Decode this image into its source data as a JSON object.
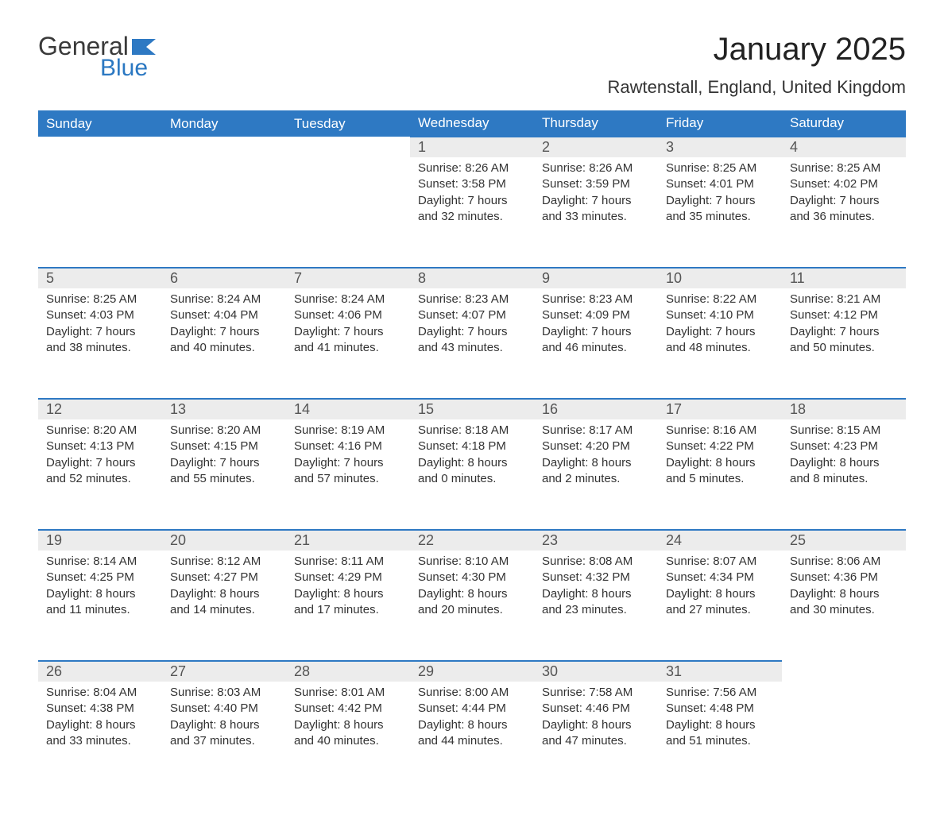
{
  "logo": {
    "text1": "General",
    "text2": "Blue",
    "flag_color": "#2e79c3"
  },
  "title": "January 2025",
  "subtitle": "Rawtenstall, England, United Kingdom",
  "colors": {
    "header_bg": "#2e79c3",
    "header_text": "#ffffff",
    "daynum_bg": "#ececec",
    "row_border": "#2e79c3",
    "body_text": "#333333"
  },
  "fonts": {
    "title_size": 40,
    "subtitle_size": 22,
    "header_size": 17,
    "cell_size": 15
  },
  "day_headers": [
    "Sunday",
    "Monday",
    "Tuesday",
    "Wednesday",
    "Thursday",
    "Friday",
    "Saturday"
  ],
  "weeks": [
    [
      null,
      null,
      null,
      {
        "n": "1",
        "sunrise": "8:26 AM",
        "sunset": "3:58 PM",
        "daylight": "7 hours and 32 minutes."
      },
      {
        "n": "2",
        "sunrise": "8:26 AM",
        "sunset": "3:59 PM",
        "daylight": "7 hours and 33 minutes."
      },
      {
        "n": "3",
        "sunrise": "8:25 AM",
        "sunset": "4:01 PM",
        "daylight": "7 hours and 35 minutes."
      },
      {
        "n": "4",
        "sunrise": "8:25 AM",
        "sunset": "4:02 PM",
        "daylight": "7 hours and 36 minutes."
      }
    ],
    [
      {
        "n": "5",
        "sunrise": "8:25 AM",
        "sunset": "4:03 PM",
        "daylight": "7 hours and 38 minutes."
      },
      {
        "n": "6",
        "sunrise": "8:24 AM",
        "sunset": "4:04 PM",
        "daylight": "7 hours and 40 minutes."
      },
      {
        "n": "7",
        "sunrise": "8:24 AM",
        "sunset": "4:06 PM",
        "daylight": "7 hours and 41 minutes."
      },
      {
        "n": "8",
        "sunrise": "8:23 AM",
        "sunset": "4:07 PM",
        "daylight": "7 hours and 43 minutes."
      },
      {
        "n": "9",
        "sunrise": "8:23 AM",
        "sunset": "4:09 PM",
        "daylight": "7 hours and 46 minutes."
      },
      {
        "n": "10",
        "sunrise": "8:22 AM",
        "sunset": "4:10 PM",
        "daylight": "7 hours and 48 minutes."
      },
      {
        "n": "11",
        "sunrise": "8:21 AM",
        "sunset": "4:12 PM",
        "daylight": "7 hours and 50 minutes."
      }
    ],
    [
      {
        "n": "12",
        "sunrise": "8:20 AM",
        "sunset": "4:13 PM",
        "daylight": "7 hours and 52 minutes."
      },
      {
        "n": "13",
        "sunrise": "8:20 AM",
        "sunset": "4:15 PM",
        "daylight": "7 hours and 55 minutes."
      },
      {
        "n": "14",
        "sunrise": "8:19 AM",
        "sunset": "4:16 PM",
        "daylight": "7 hours and 57 minutes."
      },
      {
        "n": "15",
        "sunrise": "8:18 AM",
        "sunset": "4:18 PM",
        "daylight": "8 hours and 0 minutes."
      },
      {
        "n": "16",
        "sunrise": "8:17 AM",
        "sunset": "4:20 PM",
        "daylight": "8 hours and 2 minutes."
      },
      {
        "n": "17",
        "sunrise": "8:16 AM",
        "sunset": "4:22 PM",
        "daylight": "8 hours and 5 minutes."
      },
      {
        "n": "18",
        "sunrise": "8:15 AM",
        "sunset": "4:23 PM",
        "daylight": "8 hours and 8 minutes."
      }
    ],
    [
      {
        "n": "19",
        "sunrise": "8:14 AM",
        "sunset": "4:25 PM",
        "daylight": "8 hours and 11 minutes."
      },
      {
        "n": "20",
        "sunrise": "8:12 AM",
        "sunset": "4:27 PM",
        "daylight": "8 hours and 14 minutes."
      },
      {
        "n": "21",
        "sunrise": "8:11 AM",
        "sunset": "4:29 PM",
        "daylight": "8 hours and 17 minutes."
      },
      {
        "n": "22",
        "sunrise": "8:10 AM",
        "sunset": "4:30 PM",
        "daylight": "8 hours and 20 minutes."
      },
      {
        "n": "23",
        "sunrise": "8:08 AM",
        "sunset": "4:32 PM",
        "daylight": "8 hours and 23 minutes."
      },
      {
        "n": "24",
        "sunrise": "8:07 AM",
        "sunset": "4:34 PM",
        "daylight": "8 hours and 27 minutes."
      },
      {
        "n": "25",
        "sunrise": "8:06 AM",
        "sunset": "4:36 PM",
        "daylight": "8 hours and 30 minutes."
      }
    ],
    [
      {
        "n": "26",
        "sunrise": "8:04 AM",
        "sunset": "4:38 PM",
        "daylight": "8 hours and 33 minutes."
      },
      {
        "n": "27",
        "sunrise": "8:03 AM",
        "sunset": "4:40 PM",
        "daylight": "8 hours and 37 minutes."
      },
      {
        "n": "28",
        "sunrise": "8:01 AM",
        "sunset": "4:42 PM",
        "daylight": "8 hours and 40 minutes."
      },
      {
        "n": "29",
        "sunrise": "8:00 AM",
        "sunset": "4:44 PM",
        "daylight": "8 hours and 44 minutes."
      },
      {
        "n": "30",
        "sunrise": "7:58 AM",
        "sunset": "4:46 PM",
        "daylight": "8 hours and 47 minutes."
      },
      {
        "n": "31",
        "sunrise": "7:56 AM",
        "sunset": "4:48 PM",
        "daylight": "8 hours and 51 minutes."
      },
      null
    ]
  ],
  "labels": {
    "sunrise": "Sunrise:",
    "sunset": "Sunset:",
    "daylight": "Daylight:"
  }
}
